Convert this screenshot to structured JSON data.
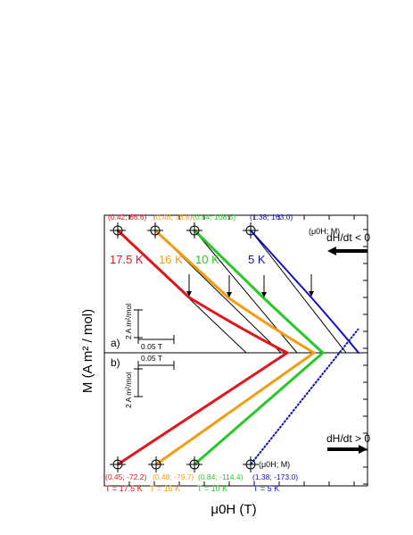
{
  "figure": {
    "ylabel": "M (A m² / mol)",
    "xlabel": "μ0H (T)",
    "panel_a_label": "a)",
    "panel_b_label": "b)",
    "scalebar_y": "2 A m²/mol",
    "scalebar_x": "0.05 T",
    "legend_point": "(μ0H; M)",
    "direction_a": "dH/dt < 0",
    "direction_b": "dH/dt > 0"
  },
  "colors": {
    "17.5 K": "#e0161b",
    "16 K": "#f39c12",
    "10 K": "#28c828",
    "5 K": "#1010c0",
    "fit": "#000000"
  },
  "chart_data": [
    {
      "panel": "a",
      "type": "line",
      "direction": "dH/dt < 0",
      "series": [
        {
          "name": "17.5 K",
          "color": "#e0161b",
          "points": [
            [
              0.42,
              66.6
            ],
            [
              0.61,
              0
            ]
          ]
        },
        {
          "name": "16 K",
          "color": "#f39c12",
          "points": [
            [
              0.48,
              73.8
            ],
            [
              0.68,
              0
            ]
          ]
        },
        {
          "name": "10 K",
          "color": "#28c828",
          "points": [
            [
              0.84,
              108.5
            ],
            [
              1.06,
              0
            ]
          ]
        },
        {
          "name": "5 K",
          "color": "#1010c0",
          "points": [
            [
              1.38,
              163.0
            ],
            [
              1.63,
              0
            ]
          ]
        }
      ],
      "markers": [
        {
          "label": "(0.42; 66.6)",
          "color": "#e0161b"
        },
        {
          "label": "(0.48; 73.8)",
          "color": "#f39c12"
        },
        {
          "label": "(0.84; 108.5)",
          "color": "#28c828"
        },
        {
          "label": "(1.38; 163.0)",
          "color": "#1010c0"
        }
      ]
    },
    {
      "panel": "b",
      "type": "line",
      "direction": "dH/dt > 0",
      "series": [
        {
          "name": "T = 17.5 K",
          "color": "#e0161b",
          "points": [
            [
              0.45,
              -72.2
            ],
            [
              0.61,
              0
            ]
          ]
        },
        {
          "name": "T = 16 K",
          "color": "#f39c12",
          "points": [
            [
              0.48,
              -79.7
            ],
            [
              0.68,
              0
            ]
          ]
        },
        {
          "name": "T = 10 K",
          "color": "#28c828",
          "points": [
            [
              0.84,
              -114.4
            ],
            [
              1.06,
              0
            ]
          ]
        },
        {
          "name": "T = 5 K",
          "color": "#1010c0",
          "points": [
            [
              1.38,
              -173.0
            ],
            [
              1.63,
              0
            ]
          ]
        }
      ],
      "markers": [
        {
          "label": "(0.45; -72.2)",
          "color": "#e0161b"
        },
        {
          "label": "(0.48; -79.7)",
          "color": "#f39c12"
        },
        {
          "label": "(0.84; -114.4)",
          "color": "#28c828"
        },
        {
          "label": "(1.38; -173.0)",
          "color": "#1010c0"
        }
      ]
    }
  ]
}
